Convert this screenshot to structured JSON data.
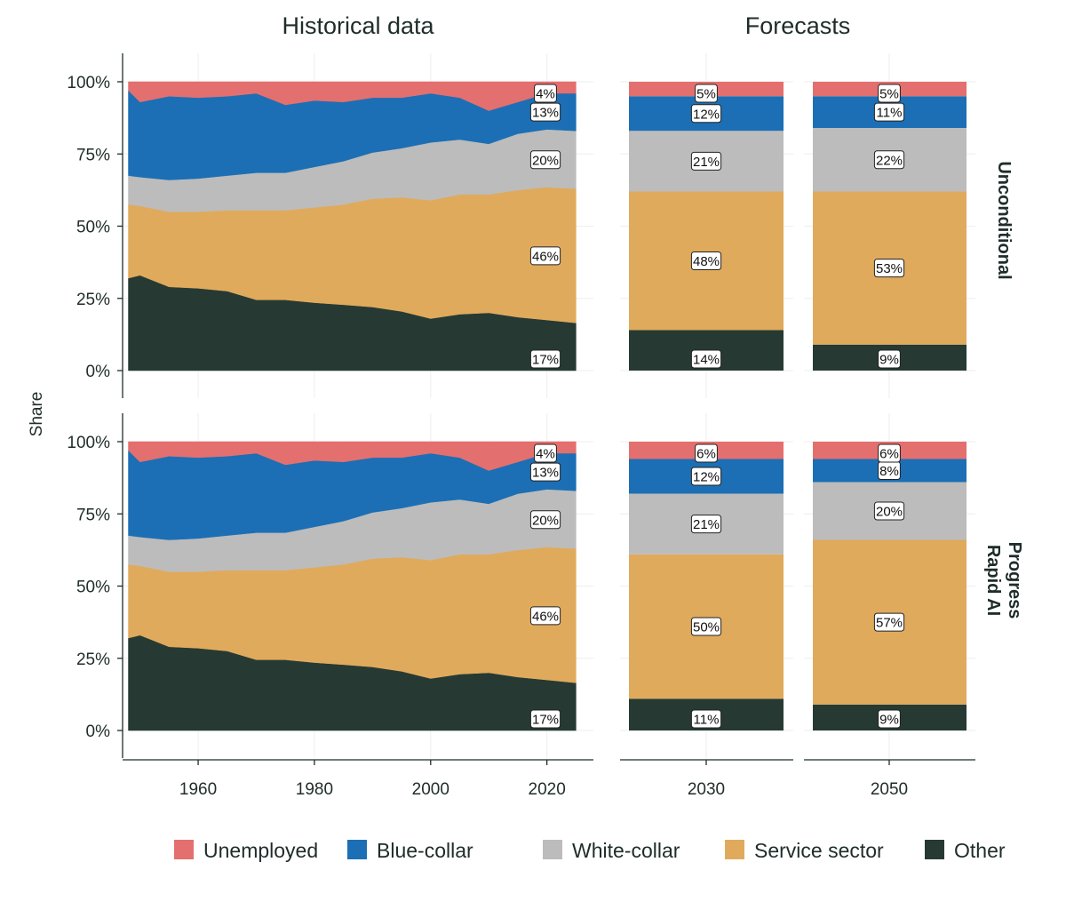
{
  "chart_data": {
    "type": "area",
    "column_titles": [
      "Historical data",
      "Forecasts"
    ],
    "ylabel": "Share",
    "yticks": [
      "0%",
      "25%",
      "50%",
      "75%",
      "100%"
    ],
    "ylim": [
      0,
      1
    ],
    "historical_xticks": [
      "1960",
      "1980",
      "2000",
      "2020"
    ],
    "historical_xlim": [
      1947,
      2028
    ],
    "categories_order": [
      "Other",
      "Service sector",
      "White-collar",
      "Blue-collar",
      "Unemployed"
    ],
    "legend": [
      "Unemployed",
      "Blue-collar",
      "White-collar",
      "Service sector",
      "Other"
    ],
    "colors": {
      "Unemployed": "#e46f6f",
      "Blue-collar": "#1c6fb4",
      "White-collar": "#bcbcbc",
      "Service sector": "#e0aa5c",
      "Other": "#263a33"
    },
    "historical": {
      "years": [
        1948,
        1950,
        1955,
        1960,
        1965,
        1970,
        1975,
        1980,
        1985,
        1990,
        1995,
        2000,
        2005,
        2010,
        2015,
        2020,
        2025
      ],
      "series": {
        "Other": [
          0.32,
          0.33,
          0.29,
          0.285,
          0.275,
          0.245,
          0.245,
          0.235,
          0.228,
          0.22,
          0.205,
          0.18,
          0.195,
          0.2,
          0.185,
          0.175,
          0.165
        ],
        "Service sector": [
          0.255,
          0.24,
          0.26,
          0.265,
          0.28,
          0.31,
          0.31,
          0.33,
          0.347,
          0.375,
          0.395,
          0.41,
          0.415,
          0.41,
          0.44,
          0.46,
          0.465
        ],
        "White-collar": [
          0.1,
          0.1,
          0.11,
          0.115,
          0.12,
          0.13,
          0.13,
          0.14,
          0.15,
          0.16,
          0.17,
          0.2,
          0.19,
          0.175,
          0.195,
          0.2,
          0.2
        ],
        "Blue-collar": [
          0.295,
          0.26,
          0.29,
          0.28,
          0.275,
          0.275,
          0.235,
          0.23,
          0.205,
          0.19,
          0.175,
          0.17,
          0.145,
          0.115,
          0.11,
          0.125,
          0.13
        ],
        "Unemployed": [
          0.03,
          0.07,
          0.05,
          0.055,
          0.05,
          0.04,
          0.08,
          0.065,
          0.07,
          0.055,
          0.055,
          0.04,
          0.055,
          0.1,
          0.07,
          0.04,
          0.04
        ]
      }
    },
    "forecasts": [
      {
        "year": "2030",
        "Unconditional": {
          "Other": 0.14,
          "Service sector": 0.48,
          "White-collar": 0.21,
          "Blue-collar": 0.12,
          "Unemployed": 0.05
        },
        "Rapid AI Progress": {
          "Other": 0.11,
          "Service sector": 0.5,
          "White-collar": 0.21,
          "Blue-collar": 0.12,
          "Unemployed": 0.06
        }
      },
      {
        "year": "2050",
        "Unconditional": {
          "Other": 0.09,
          "Service sector": 0.53,
          "White-collar": 0.22,
          "Blue-collar": 0.11,
          "Unemployed": 0.05
        },
        "Rapid AI Progress": {
          "Other": 0.09,
          "Service sector": 0.57,
          "White-collar": 0.2,
          "Blue-collar": 0.08,
          "Unemployed": 0.06
        }
      }
    ],
    "scenarios": [
      {
        "key": "Unconditional",
        "strip": [
          "Unconditional"
        ]
      },
      {
        "key": "Rapid AI Progress",
        "strip": [
          "Rapid AI",
          "Progress"
        ]
      }
    ],
    "historical_labels": {
      "Other": "17%",
      "Service sector": "46%",
      "White-collar": "20%",
      "Blue-collar": "13%",
      "Unemployed": "4%"
    },
    "forecast_labels": {
      "Unconditional": {
        "2030": {
          "Other": "14%",
          "Service sector": "48%",
          "White-collar": "21%",
          "Blue-collar": "12%",
          "Unemployed": "5%"
        },
        "2050": {
          "Other": "9%",
          "Service sector": "53%",
          "White-collar": "22%",
          "Blue-collar": "11%",
          "Unemployed": "5%"
        }
      },
      "Rapid AI Progress": {
        "2030": {
          "Other": "11%",
          "Service sector": "50%",
          "White-collar": "21%",
          "Blue-collar": "12%",
          "Unemployed": "6%"
        },
        "2050": {
          "Other": "9%",
          "Service sector": "57%",
          "White-collar": "20%",
          "Blue-collar": "8%",
          "Unemployed": "6%"
        }
      }
    },
    "legend_position": "bottom",
    "grid": true
  }
}
